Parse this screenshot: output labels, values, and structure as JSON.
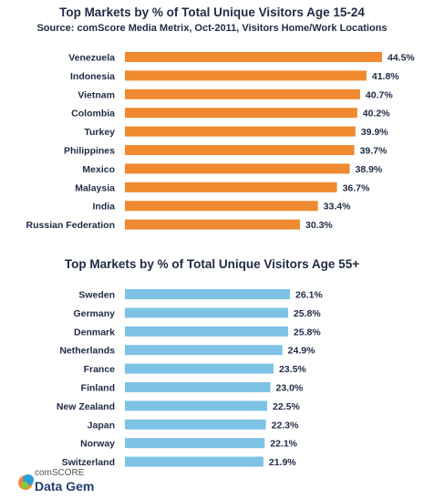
{
  "charts": {
    "top": {
      "title": "Top Markets by % of Total  Unique Visitors  Age 15-24",
      "subtitle": "Source: comScore Media Metrix, Oct-2011, Visitors Home/Work Locations"
    },
    "bottom": {
      "title": "Top Markets by % of Total  Unique Visitors Age 55+"
    }
  },
  "logo": {
    "sub": "comSCORE",
    "main": "Data Gem"
  },
  "colors": {
    "top_bar": "#ef8a30",
    "bottom_bar": "#7ec3e6"
  },
  "chart_data": [
    {
      "type": "bar",
      "orientation": "horizontal",
      "title": "Top Markets by % of Total  Unique Visitors  Age 15-24",
      "subtitle": "Source: comScore Media Metrix, Oct-2011, Visitors Home/Work Locations",
      "categories": [
        "Venezuela",
        "Indonesia",
        "Vietnam",
        "Colombia",
        "Turkey",
        "Philippines",
        "Mexico",
        "Malaysia",
        "India",
        "Russian Federation"
      ],
      "values": [
        44.5,
        41.8,
        40.7,
        40.2,
        39.9,
        39.7,
        38.9,
        36.7,
        33.4,
        30.3
      ],
      "value_labels": [
        "44.5%",
        "41.8%",
        "40.7%",
        "40.2%",
        "39.9%",
        "39.7%",
        "38.9%",
        "36.7%",
        "33.4%",
        "30.3%"
      ],
      "grid": false
    },
    {
      "type": "bar",
      "orientation": "horizontal",
      "title": "Top Markets by % of Total  Unique Visitors Age 55+",
      "categories": [
        "Sweden",
        "Germany",
        "Denmark",
        "Netherlands",
        "France",
        "Finland",
        "New Zealand",
        "Japan",
        "Norway",
        "Switzerland"
      ],
      "values": [
        26.1,
        25.8,
        25.8,
        24.9,
        23.5,
        23.0,
        22.5,
        22.3,
        22.1,
        21.9
      ],
      "value_labels": [
        "26.1%",
        "25.8%",
        "25.8%",
        "24.9%",
        "23.5%",
        "23.0%",
        "22.5%",
        "22.3%",
        "22.1%",
        "21.9%"
      ],
      "grid": false
    }
  ]
}
